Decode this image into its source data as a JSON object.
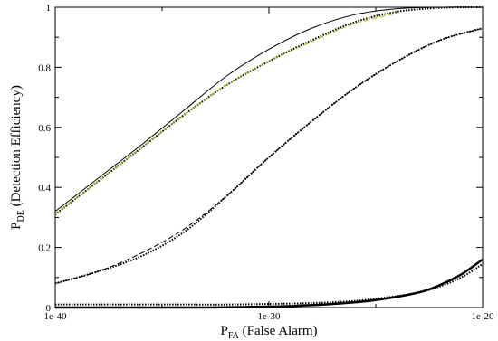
{
  "chart_data": {
    "type": "line",
    "xlabel_main": "P",
    "xlabel_sub": "FA",
    "xlabel_rest": " (False Alarm)",
    "ylabel_main": "P",
    "ylabel_sub": "DE",
    "ylabel_rest": " (Detection Efficiency)",
    "x_scale": "log",
    "xlim_exponent": [
      -40,
      -20
    ],
    "xticks": [
      {
        "exp": -40,
        "label": "1e-40"
      },
      {
        "exp": -30,
        "label": "1e-30"
      },
      {
        "exp": -20,
        "label": "1e-20"
      }
    ],
    "ylim": [
      0,
      1
    ],
    "yticks": [
      {
        "value": 0,
        "label": "0"
      },
      {
        "value": 0.2,
        "label": "0.2"
      },
      {
        "value": 0.4,
        "label": "0.4"
      },
      {
        "value": 0.6,
        "label": "0.6"
      },
      {
        "value": 0.8,
        "label": "0.8"
      },
      {
        "value": 1,
        "label": "1"
      }
    ],
    "grid": false,
    "series": [
      {
        "style": "dotted",
        "color": "#000000",
        "x_exp": [
          -40,
          -38,
          -36,
          -34,
          -32,
          -30,
          -28,
          -26,
          -24,
          -22,
          -20
        ],
        "y": [
          0.31,
          0.42,
          0.53,
          0.64,
          0.74,
          0.82,
          0.89,
          0.95,
          0.985,
          0.998,
          1.0
        ]
      },
      {
        "style": "dashed",
        "color": "#b8b800",
        "x_exp": [
          -40,
          -38,
          -36,
          -34,
          -32,
          -30,
          -28,
          -26,
          -24
        ],
        "y": [
          0.31,
          0.42,
          0.53,
          0.64,
          0.74,
          0.82,
          0.885,
          0.945,
          0.98
        ]
      },
      {
        "style": "solid",
        "color": "#000000",
        "x_exp": [
          -40,
          -38,
          -36,
          -34,
          -32,
          -30,
          -28,
          -26,
          -24,
          -22,
          -20
        ],
        "y": [
          0.32,
          0.43,
          0.54,
          0.655,
          0.77,
          0.86,
          0.93,
          0.975,
          0.995,
          1.0,
          1.0
        ]
      },
      {
        "style": "dotted",
        "color": "#000000",
        "x_exp": [
          -40,
          -38,
          -36,
          -34,
          -32,
          -30,
          -28,
          -26,
          -24,
          -22,
          -20
        ],
        "y": [
          0.08,
          0.12,
          0.17,
          0.25,
          0.37,
          0.5,
          0.62,
          0.73,
          0.82,
          0.89,
          0.93
        ]
      },
      {
        "style": "dashed",
        "color": "#000000",
        "x_exp": [
          -40,
          -38,
          -36,
          -34,
          -32,
          -30,
          -28,
          -26,
          -24,
          -22,
          -20
        ],
        "y": [
          0.08,
          0.12,
          0.18,
          0.26,
          0.37,
          0.5,
          0.62,
          0.73,
          0.82,
          0.89,
          0.93
        ]
      },
      {
        "style": "solid",
        "color": "#000000",
        "width": 2.5,
        "x_exp": [
          -40,
          -36,
          -33,
          -31,
          -29,
          -27,
          -25,
          -23,
          -22,
          -21,
          -20
        ],
        "y": [
          0.0,
          0.0,
          0.0,
          0.002,
          0.005,
          0.012,
          0.025,
          0.05,
          0.075,
          0.11,
          0.16
        ]
      },
      {
        "style": "dotted",
        "color": "#000000",
        "x_exp": [
          -40,
          -34,
          -32,
          -30,
          -28,
          -26,
          -24,
          -23,
          -22,
          -21,
          -20
        ],
        "y": [
          0.01,
          0.01,
          0.01,
          0.012,
          0.015,
          0.022,
          0.038,
          0.05,
          0.07,
          0.1,
          0.145
        ]
      }
    ]
  }
}
